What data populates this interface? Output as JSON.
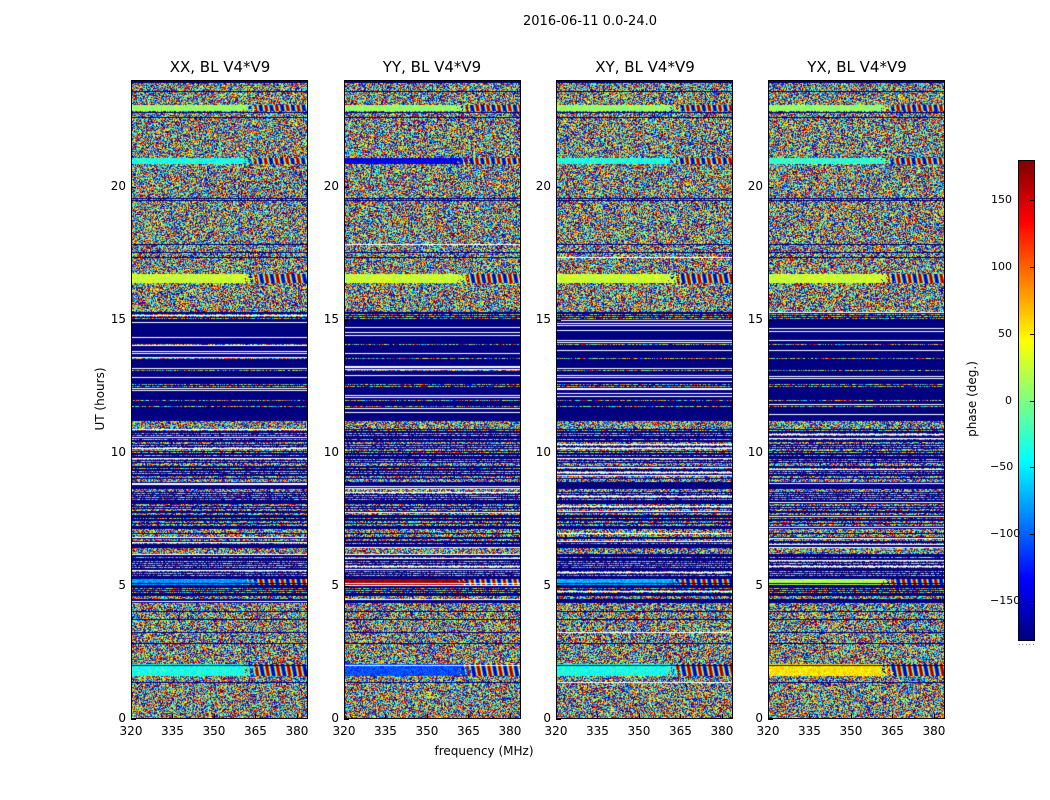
{
  "chart_data": {
    "type": "heatmap",
    "title": "2016-06-11 0.0-24.0",
    "xlabel": "frequency (MHz)",
    "ylabel": "UT (hours)",
    "xlim": [
      320,
      384
    ],
    "ylim": [
      0,
      24
    ],
    "xticks": [
      "320",
      "335",
      "350",
      "365",
      "380"
    ],
    "xtick_values": [
      320,
      335,
      350,
      365,
      380
    ],
    "yticks": [
      "0",
      "5",
      "10",
      "15",
      "20"
    ],
    "ytick_values": [
      0,
      5,
      10,
      15,
      20
    ],
    "panels": [
      {
        "title": "XX, BL V4*V9",
        "pol": "XX"
      },
      {
        "title": "YY, BL V4*V9",
        "pol": "YY"
      },
      {
        "title": "XY, BL V4*V9",
        "pol": "XY"
      },
      {
        "title": "YX, BL V4*V9",
        "pol": "YX"
      }
    ],
    "colorbar": {
      "label": "phase (deg.)",
      "range": [
        -180,
        180
      ],
      "ticks": [
        "150",
        "100",
        "50",
        "0",
        "−50",
        "−100",
        "−150"
      ],
      "tick_values": [
        150,
        100,
        50,
        0,
        -50,
        -100,
        -150
      ],
      "colormap": "jet",
      "overflow_marker": "....."
    },
    "features": {
      "flagged_block_hours": [
        11.2,
        15.3
      ],
      "coherent_bands_hours": [
        1.6,
        2.0,
        5.0,
        5.8,
        16.5,
        21.0,
        23.0
      ]
    }
  }
}
